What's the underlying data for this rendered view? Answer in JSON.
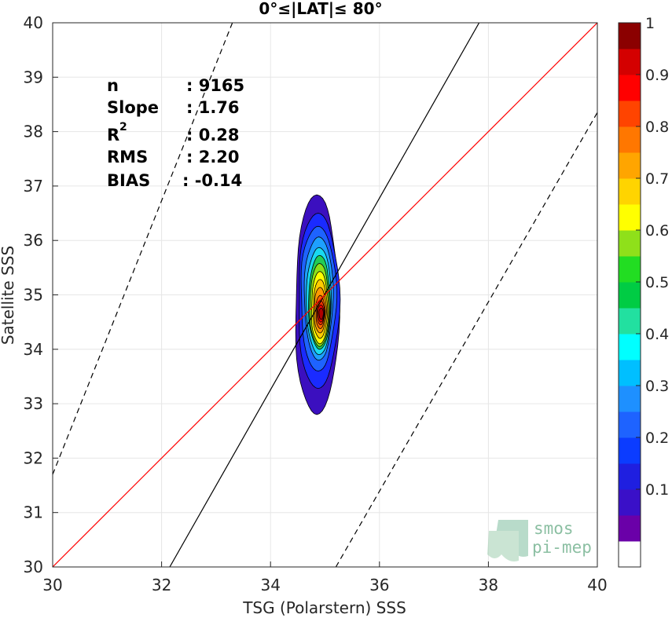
{
  "chart_data": {
    "type": "scatter",
    "title": "0°≤|LAT|≤ 80°",
    "xlabel": "TSG (Polarstern) SSS",
    "ylabel": "Satellite SSS",
    "xlim": [
      30,
      40
    ],
    "ylim": [
      30,
      40
    ],
    "x_ticks": [
      "30",
      "32",
      "34",
      "36",
      "38",
      "40"
    ],
    "y_ticks": [
      "30",
      "31",
      "32",
      "33",
      "34",
      "35",
      "36",
      "37",
      "38",
      "39",
      "40"
    ],
    "grid": true,
    "stats": {
      "n_label": "n",
      "n_value": ": 9165",
      "slope_label": "Slope",
      "slope_value": ": 1.76",
      "r2_label": "R",
      "r2_sup": "2",
      "r2_value": ": 0.28",
      "rms_label": "RMS",
      "rms_value": ": 2.20",
      "bias_label": "BIAS",
      "bias_value": ": -0.14"
    },
    "lines": {
      "identity": {
        "color": "#ff0000",
        "points": [
          [
            30,
            30
          ],
          [
            40,
            40
          ]
        ]
      },
      "fit": {
        "color": "#000000",
        "points": [
          [
            32.15,
            30
          ],
          [
            37.83,
            40
          ]
        ]
      },
      "upper_dashed": {
        "color": "#000000",
        "dash": true,
        "points": [
          [
            30,
            31.7
          ],
          [
            33.3,
            40
          ]
        ]
      },
      "lower_dashed": {
        "color": "#000000",
        "dash": true,
        "points": [
          [
            35.2,
            30
          ],
          [
            40,
            38.35
          ]
        ]
      }
    },
    "density_contours": {
      "center": [
        34.93,
        34.65
      ],
      "levels": [
        {
          "level": 0.05,
          "color": "#3b0fbf",
          "x": [
            34.45,
            35.25
          ],
          "y": [
            32.8,
            36.9
          ]
        },
        {
          "level": 0.15,
          "color": "#1a2bff",
          "x": [
            34.5,
            35.25
          ],
          "y": [
            33.28,
            36.55
          ]
        },
        {
          "level": 0.25,
          "color": "#1e63ff",
          "x": [
            34.55,
            35.2
          ],
          "y": [
            33.6,
            36.3
          ]
        },
        {
          "level": 0.35,
          "color": "#1ea0ff",
          "x": [
            34.62,
            35.15
          ],
          "y": [
            33.8,
            36.1
          ]
        },
        {
          "level": 0.45,
          "color": "#19d9f0",
          "x": [
            34.66,
            35.12
          ],
          "y": [
            33.9,
            35.9
          ]
        },
        {
          "level": 0.55,
          "color": "#22cc55",
          "x": [
            34.7,
            35.1
          ],
          "y": [
            34.0,
            35.75
          ]
        },
        {
          "level": 0.6,
          "color": "#8de01a",
          "x": [
            34.72,
            35.08
          ],
          "y": [
            34.05,
            35.6
          ]
        },
        {
          "level": 0.65,
          "color": "#ffff00",
          "x": [
            34.75,
            35.06
          ],
          "y": [
            34.1,
            35.45
          ]
        },
        {
          "level": 0.7,
          "color": "#ffcc00",
          "x": [
            34.78,
            35.04
          ],
          "y": [
            34.2,
            35.3
          ]
        },
        {
          "level": 0.75,
          "color": "#ff9900",
          "x": [
            34.8,
            35.02
          ],
          "y": [
            34.3,
            35.15
          ]
        },
        {
          "level": 0.8,
          "color": "#ff6600",
          "x": [
            34.83,
            35.0
          ],
          "y": [
            34.38,
            35.0
          ]
        },
        {
          "level": 0.85,
          "color": "#ff3300",
          "x": [
            34.85,
            34.99
          ],
          "y": [
            34.45,
            34.9
          ]
        },
        {
          "level": 0.9,
          "color": "#e60000",
          "x": [
            34.87,
            34.98
          ],
          "y": [
            34.5,
            34.82
          ]
        },
        {
          "level": 0.95,
          "color": "#b00000",
          "x": [
            34.89,
            34.97
          ],
          "y": [
            34.55,
            34.76
          ]
        }
      ]
    },
    "colorbar": {
      "ticks": [
        "0.1",
        "0.2",
        "0.3",
        "0.4",
        "0.5",
        "0.6",
        "0.7",
        "0.8",
        "0.9",
        "1"
      ],
      "colors": [
        "#ffffff",
        "#6a00a8",
        "#3a10c8",
        "#1f1fe0",
        "#0b3cff",
        "#1e63ff",
        "#1e90ff",
        "#00bfff",
        "#00ffff",
        "#22e0a0",
        "#00cc44",
        "#22dd22",
        "#8fe01a",
        "#ffff00",
        "#ffd400",
        "#ffa500",
        "#ff7700",
        "#ff4400",
        "#ff0000",
        "#d40000",
        "#8b0000"
      ]
    }
  },
  "watermark": {
    "line1": "smos",
    "line2": "pi-mep",
    "color": "#3a9a6a"
  }
}
